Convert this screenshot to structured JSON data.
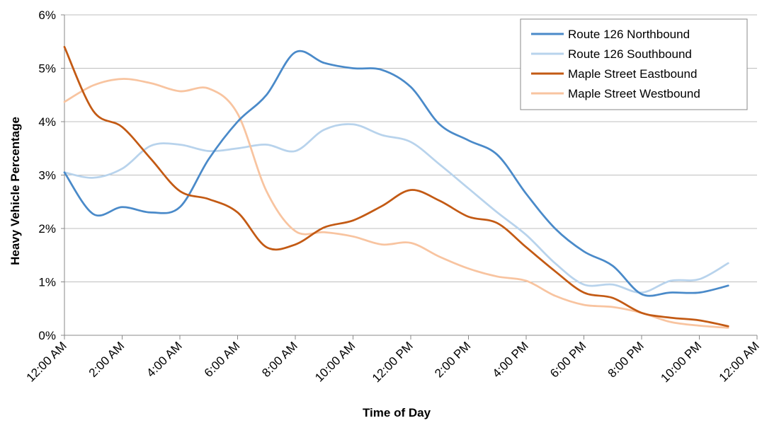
{
  "chart_data": {
    "type": "line",
    "title": "",
    "xlabel": "Time of Day",
    "ylabel": "Heavy Vehicle Percentage",
    "x_ticks": [
      "12:00 AM",
      "2:00 AM",
      "4:00 AM",
      "6:00 AM",
      "8:00 AM",
      "10:00 AM",
      "12:00 PM",
      "2:00 PM",
      "4:00 PM",
      "6:00 PM",
      "8:00 PM",
      "10:00 PM",
      "12:00 AM"
    ],
    "y_ticks": [
      "0%",
      "1%",
      "2%",
      "3%",
      "4%",
      "5%",
      "6%"
    ],
    "ylim": [
      0,
      6
    ],
    "xlim": [
      0,
      24
    ],
    "x": [
      "12:00 AM",
      "1:00 AM",
      "2:00 AM",
      "3:00 AM",
      "4:00 AM",
      "5:00 AM",
      "6:00 AM",
      "7:00 AM",
      "8:00 AM",
      "9:00 AM",
      "10:00 AM",
      "11:00 AM",
      "12:00 PM",
      "1:00 PM",
      "2:00 PM",
      "3:00 PM",
      "4:00 PM",
      "5:00 PM",
      "6:00 PM",
      "7:00 PM",
      "8:00 PM",
      "9:00 PM",
      "10:00 PM",
      "11:00 PM"
    ],
    "grid": "horizontal",
    "legend_position": "top-right",
    "series": [
      {
        "name": "Route 126 Northbound",
        "color": "#4a8ac9",
        "values": [
          3.05,
          2.27,
          2.4,
          2.3,
          2.4,
          3.3,
          4.0,
          4.5,
          5.3,
          5.1,
          5.0,
          4.97,
          4.65,
          3.95,
          3.65,
          3.38,
          2.65,
          2.0,
          1.57,
          1.3,
          0.77,
          0.8,
          0.8,
          0.93
        ]
      },
      {
        "name": "Route 126 Southbound",
        "color": "#b8d3ec",
        "values": [
          3.05,
          2.95,
          3.12,
          3.55,
          3.57,
          3.45,
          3.5,
          3.57,
          3.45,
          3.85,
          3.95,
          3.75,
          3.62,
          3.2,
          2.75,
          2.3,
          1.88,
          1.35,
          0.95,
          0.95,
          0.8,
          1.02,
          1.05,
          1.35
        ]
      },
      {
        "name": "Maple Street Eastbound",
        "color": "#c35a14",
        "values": [
          5.4,
          4.2,
          3.9,
          3.3,
          2.7,
          2.55,
          2.3,
          1.65,
          1.7,
          2.02,
          2.15,
          2.42,
          2.72,
          2.52,
          2.22,
          2.1,
          1.65,
          1.2,
          0.8,
          0.7,
          0.42,
          0.33,
          0.28,
          0.17
        ]
      },
      {
        "name": "Maple Street Westbound",
        "color": "#f8c4a0",
        "values": [
          4.37,
          4.68,
          4.8,
          4.72,
          4.57,
          4.62,
          4.15,
          2.7,
          1.95,
          1.93,
          1.85,
          1.7,
          1.73,
          1.47,
          1.25,
          1.1,
          1.02,
          0.74,
          0.57,
          0.53,
          0.42,
          0.25,
          0.18,
          0.14
        ]
      }
    ]
  }
}
